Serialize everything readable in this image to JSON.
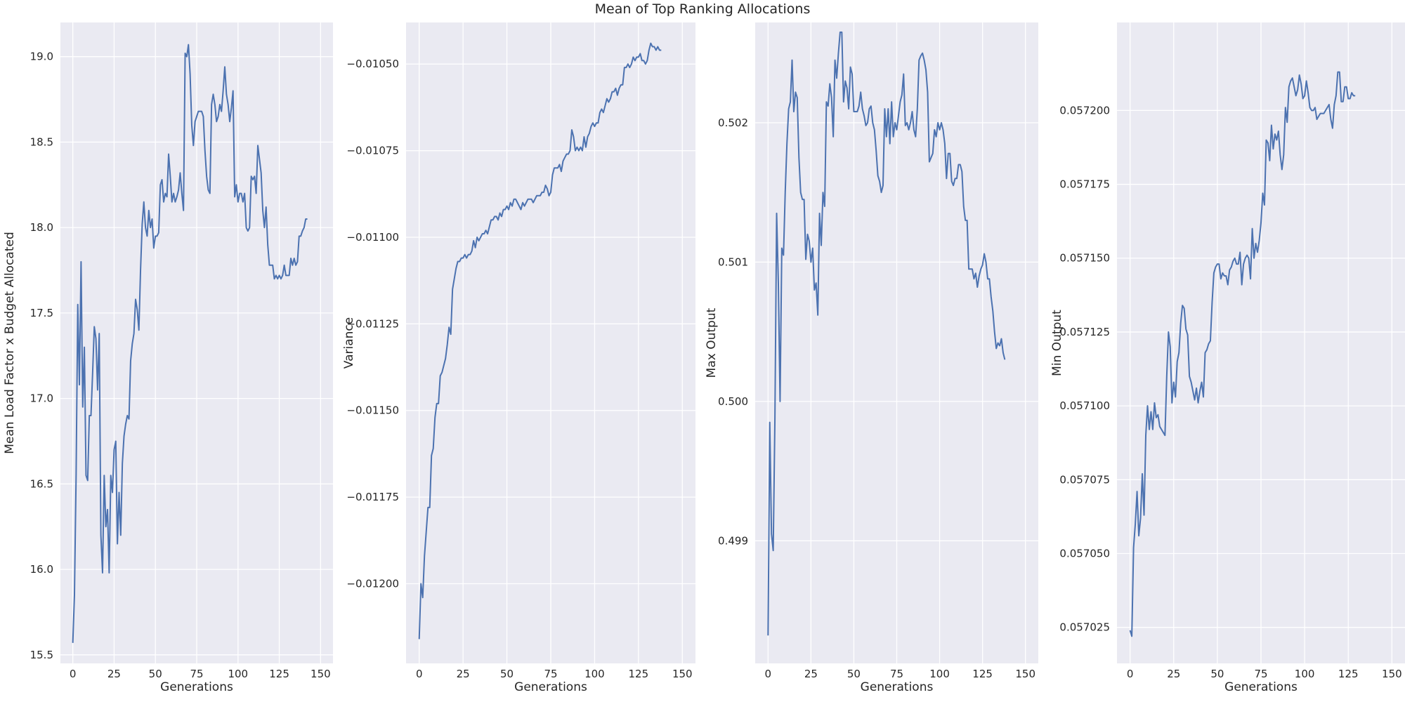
{
  "figure": {
    "title": "Mean of Top Ranking Allocations",
    "background": "#ffffff",
    "plot_background": "#eaeaf2",
    "grid_color": "#ffffff",
    "line_color": "#4c72b0"
  },
  "chart_data": [
    {
      "type": "line",
      "xlabel": "Generations",
      "ylabel": "Mean Load Factor x Budget Allocated",
      "xlim": [
        -7.5,
        157.5
      ],
      "ylim": [
        15.45,
        19.2
      ],
      "xticks": [
        0,
        25,
        50,
        75,
        100,
        125,
        150
      ],
      "xtick_labels": [
        "0",
        "25",
        "50",
        "75",
        "100",
        "125",
        "150"
      ],
      "yticks": [
        15.5,
        16.0,
        16.5,
        17.0,
        17.5,
        18.0,
        18.5,
        19.0
      ],
      "ytick_labels": [
        "15.5",
        "16.0",
        "16.5",
        "17.0",
        "17.5",
        "18.0",
        "18.5",
        "19.0"
      ],
      "grid": true,
      "series": [
        {
          "x_start": 0,
          "x_step": 1,
          "values": [
            15.57,
            15.85,
            16.55,
            17.55,
            17.08,
            17.8,
            16.95,
            17.3,
            16.55,
            16.52,
            16.9,
            16.9,
            17.15,
            17.42,
            17.35,
            17.05,
            17.38,
            16.2,
            15.98,
            16.55,
            16.25,
            16.35,
            15.98,
            16.55,
            16.45,
            16.7,
            16.75,
            16.15,
            16.45,
            16.2,
            16.62,
            16.78,
            16.85,
            16.9,
            16.88,
            17.22,
            17.32,
            17.38,
            17.58,
            17.52,
            17.4,
            17.75,
            18.02,
            18.15,
            18.0,
            17.95,
            18.1,
            18.0,
            18.05,
            17.88,
            17.95,
            17.95,
            17.97,
            18.25,
            18.28,
            18.15,
            18.2,
            18.18,
            18.43,
            18.3,
            18.15,
            18.2,
            18.15,
            18.18,
            18.22,
            18.32,
            18.2,
            18.1,
            19.02,
            19.0,
            19.07,
            18.9,
            18.6,
            18.48,
            18.62,
            18.65,
            18.68,
            18.68,
            18.68,
            18.65,
            18.45,
            18.3,
            18.22,
            18.2,
            18.72,
            18.78,
            18.72,
            18.62,
            18.65,
            18.72,
            18.68,
            18.8,
            18.94,
            18.78,
            18.72,
            18.62,
            18.7,
            18.8,
            18.18,
            18.25,
            18.15,
            18.2,
            18.2,
            18.15,
            18.2,
            18.0,
            17.98,
            18.0,
            18.3,
            18.28,
            18.3,
            18.2,
            18.48,
            18.4,
            18.32,
            18.1,
            18.0,
            18.12,
            17.9,
            17.78,
            17.78,
            17.78,
            17.7,
            17.72,
            17.7,
            17.72,
            17.7,
            17.72,
            17.78,
            17.72,
            17.72,
            17.72,
            17.82,
            17.78,
            17.82,
            17.78,
            17.8,
            17.95,
            17.95,
            17.98,
            18.0,
            18.05,
            18.05
          ]
        }
      ]
    },
    {
      "type": "line",
      "xlabel": "Generations",
      "ylabel": "Variance",
      "xlim": [
        -7.5,
        157.5
      ],
      "ylim": [
        -0.01223,
        -0.01038
      ],
      "xticks": [
        0,
        25,
        50,
        75,
        100,
        125,
        150
      ],
      "xtick_labels": [
        "0",
        "25",
        "50",
        "75",
        "100",
        "125",
        "150"
      ],
      "yticks": [
        -0.012,
        -0.01175,
        -0.0115,
        -0.01125,
        -0.011,
        -0.01075,
        -0.0105
      ],
      "ytick_labels": [
        "−0.01200",
        "−0.01175",
        "−0.01150",
        "−0.01125",
        "−0.01100",
        "−0.01075",
        "−0.01050"
      ],
      "grid": true,
      "series": [
        {
          "x_start": 0,
          "x_step": 1,
          "values": [
            -0.01216,
            -0.012,
            -0.01204,
            -0.01192,
            -0.01185,
            -0.01178,
            -0.01178,
            -0.01163,
            -0.01161,
            -0.01152,
            -0.01148,
            -0.01148,
            -0.0114,
            -0.01139,
            -0.01137,
            -0.01135,
            -0.01131,
            -0.01126,
            -0.01128,
            -0.01115,
            -0.01112,
            -0.01109,
            -0.01107,
            -0.01107,
            -0.01106,
            -0.01106,
            -0.01105,
            -0.01106,
            -0.01105,
            -0.01105,
            -0.01104,
            -0.01101,
            -0.01103,
            -0.011,
            -0.01101,
            -0.011,
            -0.01099,
            -0.01099,
            -0.01098,
            -0.01099,
            -0.01097,
            -0.01095,
            -0.01095,
            -0.01094,
            -0.01094,
            -0.01095,
            -0.01093,
            -0.01094,
            -0.01092,
            -0.01092,
            -0.01091,
            -0.01092,
            -0.0109,
            -0.01091,
            -0.01089,
            -0.01089,
            -0.0109,
            -0.01091,
            -0.01092,
            -0.0109,
            -0.01091,
            -0.0109,
            -0.01089,
            -0.01089,
            -0.01089,
            -0.0109,
            -0.01089,
            -0.01088,
            -0.01088,
            -0.01088,
            -0.01087,
            -0.01087,
            -0.01085,
            -0.01086,
            -0.01088,
            -0.01087,
            -0.01082,
            -0.0108,
            -0.0108,
            -0.0108,
            -0.01079,
            -0.01081,
            -0.01078,
            -0.01077,
            -0.01076,
            -0.01076,
            -0.01075,
            -0.01069,
            -0.01071,
            -0.01075,
            -0.01074,
            -0.01075,
            -0.01074,
            -0.01075,
            -0.01071,
            -0.01074,
            -0.01071,
            -0.0107,
            -0.01068,
            -0.01067,
            -0.01068,
            -0.01067,
            -0.01067,
            -0.01064,
            -0.01063,
            -0.01064,
            -0.01062,
            -0.0106,
            -0.01061,
            -0.0106,
            -0.01058,
            -0.01058,
            -0.01057,
            -0.01059,
            -0.01057,
            -0.01056,
            -0.01056,
            -0.01051,
            -0.01051,
            -0.0105,
            -0.01051,
            -0.0105,
            -0.01048,
            -0.01049,
            -0.01048,
            -0.01048,
            -0.01047,
            -0.01049,
            -0.01049,
            -0.0105,
            -0.01049,
            -0.01046,
            -0.01044,
            -0.01045,
            -0.01045,
            -0.01046,
            -0.01045,
            -0.01046,
            -0.01046
          ]
        }
      ]
    },
    {
      "type": "line",
      "xlabel": "Generations",
      "ylabel": "Max Output",
      "xlim": [
        -7.5,
        157.5
      ],
      "ylim": [
        0.49812,
        0.50272
      ],
      "xticks": [
        0,
        25,
        50,
        75,
        100,
        125,
        150
      ],
      "xtick_labels": [
        "0",
        "25",
        "50",
        "75",
        "100",
        "125",
        "150"
      ],
      "yticks": [
        0.499,
        0.5,
        0.501,
        0.502
      ],
      "ytick_labels": [
        "0.499",
        "0.500",
        "0.501",
        "0.502"
      ],
      "grid": true,
      "series": [
        {
          "x_start": 0,
          "x_step": 1,
          "values": [
            0.49832,
            0.49985,
            0.49905,
            0.49893,
            0.49988,
            0.50135,
            0.50085,
            0.5,
            0.5011,
            0.50105,
            0.5015,
            0.50185,
            0.5021,
            0.50215,
            0.50245,
            0.50208,
            0.50222,
            0.50218,
            0.50175,
            0.5015,
            0.50145,
            0.50145,
            0.50102,
            0.5012,
            0.50115,
            0.501,
            0.5011,
            0.5008,
            0.50085,
            0.50062,
            0.50135,
            0.50112,
            0.5015,
            0.5014,
            0.50215,
            0.50212,
            0.50228,
            0.50218,
            0.5019,
            0.50245,
            0.50232,
            0.5025,
            0.50265,
            0.50265,
            0.50215,
            0.5023,
            0.50225,
            0.5021,
            0.5024,
            0.50235,
            0.50208,
            0.50208,
            0.50208,
            0.50212,
            0.50222,
            0.5021,
            0.50205,
            0.50198,
            0.502,
            0.5021,
            0.50212,
            0.502,
            0.50195,
            0.5018,
            0.50162,
            0.50158,
            0.5015,
            0.50155,
            0.5021,
            0.5019,
            0.5021,
            0.50185,
            0.50215,
            0.5019,
            0.502,
            0.50195,
            0.50205,
            0.50215,
            0.5022,
            0.50235,
            0.50198,
            0.502,
            0.50195,
            0.502,
            0.50208,
            0.50195,
            0.5019,
            0.5021,
            0.50245,
            0.50248,
            0.5025,
            0.50245,
            0.50238,
            0.50222,
            0.50172,
            0.50175,
            0.50178,
            0.50195,
            0.5019,
            0.502,
            0.50195,
            0.502,
            0.50195,
            0.50185,
            0.5016,
            0.50178,
            0.50178,
            0.50158,
            0.50155,
            0.5016,
            0.5016,
            0.5017,
            0.5017,
            0.50165,
            0.5014,
            0.5013,
            0.5013,
            0.50095,
            0.50095,
            0.50095,
            0.50088,
            0.50092,
            0.50082,
            0.5009,
            0.50095,
            0.50098,
            0.50106,
            0.501,
            0.50088,
            0.50088,
            0.50075,
            0.50065,
            0.5005,
            0.50038,
            0.50042,
            0.5004,
            0.50045,
            0.50035,
            0.5003
          ]
        }
      ]
    },
    {
      "type": "line",
      "xlabel": "Generations",
      "ylabel": "Min Output",
      "xlim": [
        -7.5,
        157.5
      ],
      "ylim": [
        0.0570128,
        0.0572298
      ],
      "xticks": [
        0,
        25,
        50,
        75,
        100,
        125,
        150
      ],
      "xtick_labels": [
        "0",
        "25",
        "50",
        "75",
        "100",
        "125",
        "150"
      ],
      "yticks": [
        0.057025,
        0.05705,
        0.057075,
        0.0571,
        0.057125,
        0.05715,
        0.057175,
        0.0572
      ],
      "ytick_labels": [
        "0.057025",
        "0.057050",
        "0.057075",
        "0.057100",
        "0.057125",
        "0.057150",
        "0.057175",
        "0.057200"
      ],
      "grid": true,
      "series": [
        {
          "x_start": 0,
          "x_step": 1,
          "values": [
            0.057024,
            0.057022,
            0.057052,
            0.05706,
            0.057071,
            0.057056,
            0.057062,
            0.057077,
            0.057063,
            0.05709,
            0.0571,
            0.057092,
            0.057098,
            0.057092,
            0.057101,
            0.057096,
            0.057097,
            0.057093,
            0.057092,
            0.057091,
            0.05709,
            0.05711,
            0.057125,
            0.05712,
            0.057101,
            0.057108,
            0.057103,
            0.057115,
            0.057118,
            0.057128,
            0.057134,
            0.057133,
            0.057126,
            0.057124,
            0.05711,
            0.057108,
            0.057105,
            0.057102,
            0.057106,
            0.057101,
            0.057105,
            0.057108,
            0.057103,
            0.057118,
            0.057119,
            0.057121,
            0.057122,
            0.057135,
            0.057145,
            0.057147,
            0.057148,
            0.057148,
            0.057143,
            0.057145,
            0.057144,
            0.057144,
            0.057141,
            0.057146,
            0.057147,
            0.057149,
            0.05715,
            0.057148,
            0.057148,
            0.057152,
            0.057141,
            0.057148,
            0.05715,
            0.057151,
            0.05715,
            0.057143,
            0.05716,
            0.05715,
            0.057155,
            0.057152,
            0.057156,
            0.057162,
            0.057172,
            0.057168,
            0.05719,
            0.057189,
            0.057183,
            0.057195,
            0.057187,
            0.057192,
            0.05719,
            0.057193,
            0.057185,
            0.05718,
            0.057185,
            0.057201,
            0.057196,
            0.057208,
            0.05721,
            0.057211,
            0.057208,
            0.057205,
            0.057207,
            0.057212,
            0.057209,
            0.057204,
            0.057205,
            0.05721,
            0.057206,
            0.057201,
            0.0572,
            0.0572,
            0.057201,
            0.057197,
            0.057198,
            0.057199,
            0.057199,
            0.057199,
            0.0572,
            0.057201,
            0.057202,
            0.057197,
            0.057194,
            0.057202,
            0.057205,
            0.057213,
            0.057213,
            0.057203,
            0.057203,
            0.057208,
            0.057208,
            0.057204,
            0.057204,
            0.057206,
            0.057205,
            0.057205
          ]
        }
      ]
    }
  ]
}
